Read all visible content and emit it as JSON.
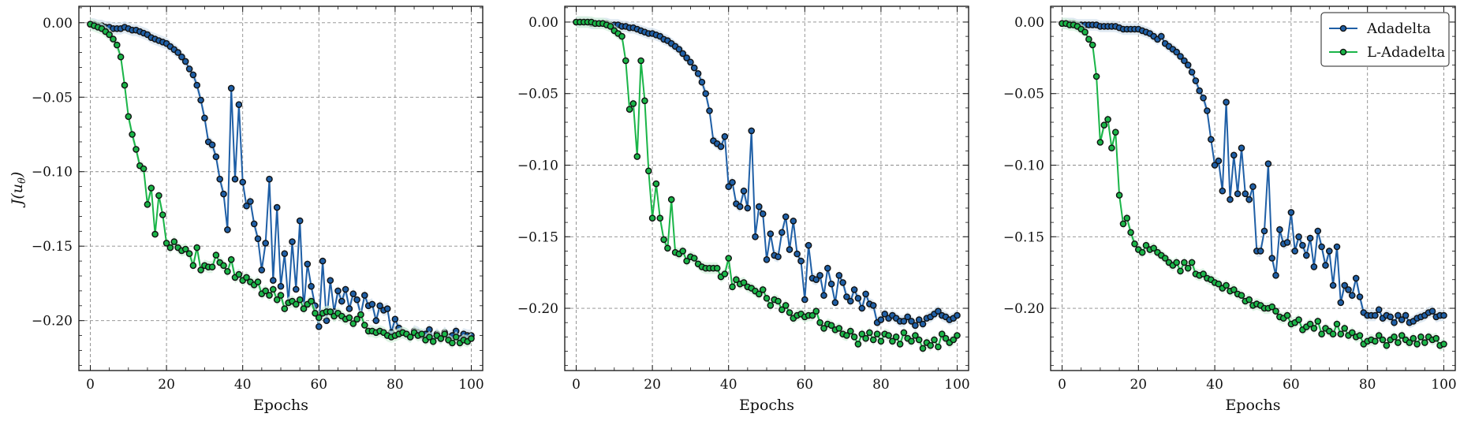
{
  "chart_data": [
    {
      "type": "line",
      "xlabel": "Epochs",
      "ylabel": "J(u_θ)",
      "ylabel_parts": {
        "base": "J(u",
        "sub": "θ",
        "close": ")"
      },
      "xlim": [
        -3,
        103
      ],
      "ylim": [
        -0.2335,
        0.011
      ],
      "xticks": [
        0,
        20,
        40,
        60,
        80,
        100
      ],
      "xtick_labels": [
        "0",
        "20",
        "40",
        "60",
        "80",
        "100"
      ],
      "yticks": [
        0.0,
        -0.05,
        -0.1,
        -0.15,
        -0.2
      ],
      "ytick_labels": [
        "0.00",
        "−0.05",
        "−0.10",
        "−0.15",
        "−0.20"
      ],
      "grid": true,
      "legend": false,
      "x": [
        0,
        1,
        2,
        3,
        4,
        5,
        6,
        7,
        8,
        9,
        10,
        11,
        12,
        13,
        14,
        15,
        16,
        17,
        18,
        19,
        20,
        21,
        22,
        23,
        24,
        25,
        26,
        27,
        28,
        29,
        30,
        31,
        32,
        33,
        34,
        35,
        36,
        37,
        38,
        39,
        40,
        41,
        42,
        43,
        44,
        45,
        46,
        47,
        48,
        49,
        50,
        51,
        52,
        53,
        54,
        55,
        56,
        57,
        58,
        59,
        60,
        61,
        62,
        63,
        64,
        65,
        66,
        67,
        68,
        69,
        70,
        71,
        72,
        73,
        74,
        75,
        76,
        77,
        78,
        79,
        80,
        81,
        82,
        83,
        84,
        85,
        86,
        87,
        88,
        89,
        90,
        91,
        92,
        93,
        94,
        95,
        96,
        97,
        98,
        99,
        100
      ],
      "series": [
        {
          "name": "Adadelta",
          "color": "#1f5fa6",
          "values": [
            -0.001,
            -0.001,
            -0.002,
            -0.002,
            -0.003,
            -0.003,
            -0.004,
            -0.004,
            -0.004,
            -0.003,
            -0.004,
            -0.005,
            -0.005,
            -0.006,
            -0.007,
            -0.008,
            -0.01,
            -0.011,
            -0.012,
            -0.013,
            -0.014,
            -0.016,
            -0.018,
            -0.02,
            -0.023,
            -0.026,
            -0.031,
            -0.035,
            -0.042,
            -0.052,
            -0.064,
            -0.08,
            -0.082,
            -0.09,
            -0.105,
            -0.115,
            -0.139,
            -0.044,
            -0.105,
            -0.055,
            -0.107,
            -0.123,
            -0.12,
            -0.135,
            -0.145,
            -0.166,
            -0.148,
            -0.105,
            -0.173,
            -0.124,
            -0.177,
            -0.155,
            -0.188,
            -0.147,
            -0.179,
            -0.133,
            -0.192,
            -0.162,
            -0.177,
            -0.19,
            -0.204,
            -0.16,
            -0.2,
            -0.173,
            -0.194,
            -0.18,
            -0.187,
            -0.179,
            -0.192,
            -0.182,
            -0.186,
            -0.196,
            -0.183,
            -0.19,
            -0.189,
            -0.2,
            -0.19,
            -0.193,
            -0.192,
            -0.208,
            -0.199,
            -0.205,
            -0.208,
            -0.209,
            -0.211,
            -0.207,
            -0.208,
            -0.21,
            -0.209,
            -0.206,
            -0.212,
            -0.209,
            -0.212,
            -0.208,
            -0.211,
            -0.21,
            -0.207,
            -0.212,
            -0.209,
            -0.21,
            -0.21
          ]
        },
        {
          "name": "L-Adadelta",
          "color": "#1ab548",
          "values": [
            -0.001,
            -0.002,
            -0.003,
            -0.004,
            -0.006,
            -0.008,
            -0.011,
            -0.015,
            -0.023,
            -0.042,
            -0.063,
            -0.075,
            -0.085,
            -0.096,
            -0.098,
            -0.122,
            -0.111,
            -0.142,
            -0.116,
            -0.129,
            -0.148,
            -0.151,
            -0.147,
            -0.151,
            -0.153,
            -0.152,
            -0.155,
            -0.163,
            -0.151,
            -0.166,
            -0.163,
            -0.164,
            -0.164,
            -0.156,
            -0.161,
            -0.163,
            -0.167,
            -0.159,
            -0.171,
            -0.169,
            -0.173,
            -0.171,
            -0.174,
            -0.176,
            -0.174,
            -0.182,
            -0.18,
            -0.183,
            -0.179,
            -0.186,
            -0.183,
            -0.192,
            -0.188,
            -0.187,
            -0.189,
            -0.186,
            -0.192,
            -0.189,
            -0.187,
            -0.195,
            -0.198,
            -0.195,
            -0.194,
            -0.194,
            -0.197,
            -0.195,
            -0.197,
            -0.199,
            -0.198,
            -0.202,
            -0.199,
            -0.196,
            -0.203,
            -0.207,
            -0.207,
            -0.208,
            -0.207,
            -0.208,
            -0.21,
            -0.211,
            -0.21,
            -0.209,
            -0.208,
            -0.209,
            -0.211,
            -0.208,
            -0.21,
            -0.209,
            -0.213,
            -0.211,
            -0.214,
            -0.21,
            -0.212,
            -0.209,
            -0.213,
            -0.215,
            -0.211,
            -0.215,
            -0.213,
            -0.214,
            -0.212
          ]
        }
      ]
    },
    {
      "type": "line",
      "xlabel": "Epochs",
      "ylabel": "",
      "xlim": [
        -3,
        103
      ],
      "ylim": [
        -0.2435,
        0.011
      ],
      "xticks": [
        0,
        20,
        40,
        60,
        80,
        100
      ],
      "xtick_labels": [
        "0",
        "20",
        "40",
        "60",
        "80",
        "100"
      ],
      "yticks": [
        0.0,
        -0.05,
        -0.1,
        -0.15,
        -0.2
      ],
      "ytick_labels": [
        "0.00",
        "−0.05",
        "−0.10",
        "−0.15",
        "−0.20"
      ],
      "grid": true,
      "legend": false,
      "x": [
        0,
        1,
        2,
        3,
        4,
        5,
        6,
        7,
        8,
        9,
        10,
        11,
        12,
        13,
        14,
        15,
        16,
        17,
        18,
        19,
        20,
        21,
        22,
        23,
        24,
        25,
        26,
        27,
        28,
        29,
        30,
        31,
        32,
        33,
        34,
        35,
        36,
        37,
        38,
        39,
        40,
        41,
        42,
        43,
        44,
        45,
        46,
        47,
        48,
        49,
        50,
        51,
        52,
        53,
        54,
        55,
        56,
        57,
        58,
        59,
        60,
        61,
        62,
        63,
        64,
        65,
        66,
        67,
        68,
        69,
        70,
        71,
        72,
        73,
        74,
        75,
        76,
        77,
        78,
        79,
        80,
        81,
        82,
        83,
        84,
        85,
        86,
        87,
        88,
        89,
        90,
        91,
        92,
        93,
        94,
        95,
        96,
        97,
        98,
        99,
        100
      ],
      "series": [
        {
          "name": "Adadelta",
          "color": "#1f5fa6",
          "values": [
            0.0,
            0.0,
            0.0,
            0.0,
            -0.001,
            -0.001,
            -0.001,
            -0.001,
            -0.001,
            -0.002,
            -0.002,
            -0.002,
            -0.003,
            -0.003,
            -0.004,
            -0.004,
            -0.005,
            -0.006,
            -0.007,
            -0.008,
            -0.008,
            -0.009,
            -0.01,
            -0.012,
            -0.013,
            -0.015,
            -0.017,
            -0.019,
            -0.022,
            -0.025,
            -0.028,
            -0.032,
            -0.036,
            -0.042,
            -0.05,
            -0.062,
            -0.083,
            -0.085,
            -0.087,
            -0.08,
            -0.115,
            -0.112,
            -0.127,
            -0.129,
            -0.118,
            -0.13,
            -0.076,
            -0.15,
            -0.129,
            -0.134,
            -0.166,
            -0.148,
            -0.163,
            -0.164,
            -0.147,
            -0.136,
            -0.159,
            -0.139,
            -0.162,
            -0.167,
            -0.194,
            -0.156,
            -0.179,
            -0.18,
            -0.177,
            -0.191,
            -0.172,
            -0.183,
            -0.196,
            -0.177,
            -0.182,
            -0.192,
            -0.195,
            -0.187,
            -0.193,
            -0.2,
            -0.19,
            -0.197,
            -0.198,
            -0.21,
            -0.208,
            -0.204,
            -0.207,
            -0.205,
            -0.207,
            -0.209,
            -0.209,
            -0.206,
            -0.209,
            -0.212,
            -0.208,
            -0.211,
            -0.207,
            -0.206,
            -0.204,
            -0.202,
            -0.205,
            -0.206,
            -0.208,
            -0.207,
            -0.205
          ]
        },
        {
          "name": "L-Adadelta",
          "color": "#1ab548",
          "values": [
            0.0,
            0.0,
            0.0,
            0.0,
            0.0,
            -0.001,
            -0.001,
            -0.001,
            -0.002,
            -0.003,
            -0.006,
            -0.008,
            -0.01,
            -0.027,
            -0.061,
            -0.057,
            -0.094,
            -0.027,
            -0.055,
            -0.104,
            -0.137,
            -0.113,
            -0.137,
            -0.152,
            -0.158,
            -0.124,
            -0.161,
            -0.162,
            -0.16,
            -0.167,
            -0.164,
            -0.165,
            -0.169,
            -0.171,
            -0.172,
            -0.172,
            -0.172,
            -0.172,
            -0.178,
            -0.176,
            -0.165,
            -0.185,
            -0.18,
            -0.183,
            -0.182,
            -0.185,
            -0.186,
            -0.188,
            -0.19,
            -0.187,
            -0.193,
            -0.198,
            -0.194,
            -0.195,
            -0.201,
            -0.198,
            -0.203,
            -0.207,
            -0.205,
            -0.204,
            -0.206,
            -0.205,
            -0.205,
            -0.202,
            -0.21,
            -0.214,
            -0.211,
            -0.212,
            -0.215,
            -0.214,
            -0.218,
            -0.219,
            -0.216,
            -0.22,
            -0.225,
            -0.218,
            -0.221,
            -0.217,
            -0.222,
            -0.218,
            -0.223,
            -0.218,
            -0.219,
            -0.223,
            -0.22,
            -0.225,
            -0.217,
            -0.221,
            -0.223,
            -0.219,
            -0.222,
            -0.228,
            -0.224,
            -0.226,
            -0.222,
            -0.227,
            -0.218,
            -0.221,
            -0.224,
            -0.222,
            -0.219
          ]
        }
      ]
    },
    {
      "type": "line",
      "xlabel": "Epochs",
      "ylabel": "",
      "xlim": [
        -3,
        103
      ],
      "ylim": [
        -0.2435,
        0.011
      ],
      "xticks": [
        0,
        20,
        40,
        60,
        80,
        100
      ],
      "xtick_labels": [
        "0",
        "20",
        "40",
        "60",
        "80",
        "100"
      ],
      "yticks": [
        0.0,
        -0.05,
        -0.1,
        -0.15,
        -0.2
      ],
      "ytick_labels": [
        "0.00",
        "−0.05",
        "−0.10",
        "−0.15",
        "−0.20"
      ],
      "grid": true,
      "legend": true,
      "legend_position": "top-right",
      "x": [
        0,
        1,
        2,
        3,
        4,
        5,
        6,
        7,
        8,
        9,
        10,
        11,
        12,
        13,
        14,
        15,
        16,
        17,
        18,
        19,
        20,
        21,
        22,
        23,
        24,
        25,
        26,
        27,
        28,
        29,
        30,
        31,
        32,
        33,
        34,
        35,
        36,
        37,
        38,
        39,
        40,
        41,
        42,
        43,
        44,
        45,
        46,
        47,
        48,
        49,
        50,
        51,
        52,
        53,
        54,
        55,
        56,
        57,
        58,
        59,
        60,
        61,
        62,
        63,
        64,
        65,
        66,
        67,
        68,
        69,
        70,
        71,
        72,
        73,
        74,
        75,
        76,
        77,
        78,
        79,
        80,
        81,
        82,
        83,
        84,
        85,
        86,
        87,
        88,
        89,
        90,
        91,
        92,
        93,
        94,
        95,
        96,
        97,
        98,
        99,
        100
      ],
      "series": [
        {
          "name": "Adadelta",
          "color": "#1f5fa6",
          "values": [
            -0.001,
            -0.001,
            -0.001,
            -0.001,
            -0.002,
            -0.002,
            -0.002,
            -0.002,
            -0.002,
            -0.002,
            -0.003,
            -0.003,
            -0.003,
            -0.003,
            -0.003,
            -0.004,
            -0.005,
            -0.005,
            -0.005,
            -0.005,
            -0.005,
            -0.006,
            -0.007,
            -0.008,
            -0.01,
            -0.012,
            -0.01,
            -0.015,
            -0.017,
            -0.019,
            -0.021,
            -0.024,
            -0.027,
            -0.03,
            -0.035,
            -0.041,
            -0.048,
            -0.053,
            -0.062,
            -0.082,
            -0.1,
            -0.097,
            -0.118,
            -0.056,
            -0.124,
            -0.093,
            -0.12,
            -0.088,
            -0.12,
            -0.124,
            -0.115,
            -0.16,
            -0.16,
            -0.146,
            -0.099,
            -0.165,
            -0.177,
            -0.145,
            -0.155,
            -0.154,
            -0.133,
            -0.16,
            -0.15,
            -0.156,
            -0.163,
            -0.151,
            -0.171,
            -0.146,
            -0.157,
            -0.17,
            -0.16,
            -0.184,
            -0.157,
            -0.196,
            -0.184,
            -0.187,
            -0.191,
            -0.179,
            -0.192,
            -0.203,
            -0.205,
            -0.205,
            -0.205,
            -0.201,
            -0.207,
            -0.205,
            -0.206,
            -0.21,
            -0.205,
            -0.208,
            -0.205,
            -0.21,
            -0.209,
            -0.207,
            -0.206,
            -0.205,
            -0.203,
            -0.202,
            -0.206,
            -0.205,
            -0.205
          ]
        },
        {
          "name": "L-Adadelta",
          "color": "#1ab548",
          "values": [
            -0.001,
            -0.001,
            -0.002,
            -0.002,
            -0.003,
            -0.005,
            -0.007,
            -0.012,
            -0.016,
            -0.038,
            -0.084,
            -0.072,
            -0.068,
            -0.088,
            -0.077,
            -0.121,
            -0.141,
            -0.137,
            -0.147,
            -0.155,
            -0.159,
            -0.161,
            -0.156,
            -0.159,
            -0.158,
            -0.161,
            -0.163,
            -0.165,
            -0.168,
            -0.17,
            -0.168,
            -0.174,
            -0.168,
            -0.172,
            -0.168,
            -0.176,
            -0.177,
            -0.176,
            -0.179,
            -0.18,
            -0.182,
            -0.183,
            -0.186,
            -0.184,
            -0.188,
            -0.187,
            -0.19,
            -0.191,
            -0.195,
            -0.194,
            -0.198,
            -0.197,
            -0.198,
            -0.2,
            -0.2,
            -0.199,
            -0.202,
            -0.206,
            -0.207,
            -0.205,
            -0.211,
            -0.21,
            -0.208,
            -0.215,
            -0.213,
            -0.211,
            -0.214,
            -0.209,
            -0.218,
            -0.214,
            -0.216,
            -0.218,
            -0.211,
            -0.218,
            -0.214,
            -0.219,
            -0.217,
            -0.22,
            -0.219,
            -0.225,
            -0.223,
            -0.222,
            -0.223,
            -0.219,
            -0.222,
            -0.226,
            -0.222,
            -0.22,
            -0.224,
            -0.219,
            -0.222,
            -0.224,
            -0.221,
            -0.225,
            -0.22,
            -0.224,
            -0.22,
            -0.222,
            -0.221,
            -0.226,
            -0.225
          ]
        }
      ]
    }
  ],
  "legend": {
    "items": [
      {
        "label": "Adadelta",
        "color": "#1f5fa6"
      },
      {
        "label": "L-Adadelta",
        "color": "#1ab548"
      }
    ]
  }
}
